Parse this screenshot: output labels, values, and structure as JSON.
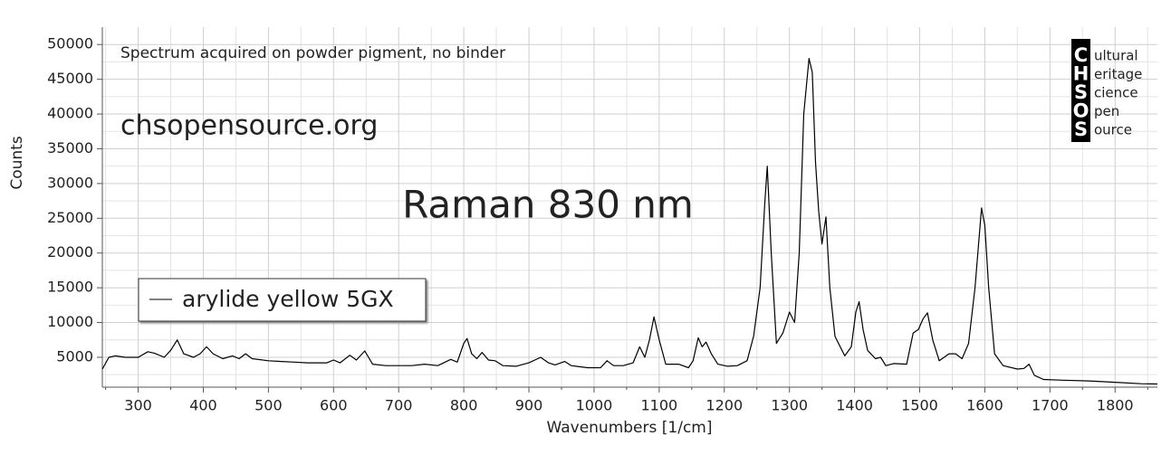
{
  "chart_data": {
    "type": "line",
    "title": "Raman 830 nm",
    "xlabel": "Wavenumbers [1/cm]",
    "ylabel": "Counts",
    "annotations": [
      "Spectrum acquired on powder pigment, no binder",
      "chsopensource.org"
    ],
    "logo": {
      "letters": [
        "C",
        "H",
        "S",
        "O",
        "S"
      ],
      "words": [
        "ultural",
        "eritage",
        "cience",
        "pen",
        "ource"
      ]
    },
    "legend": "upper left",
    "grid": true,
    "xlim": [
      245,
      1865
    ],
    "ylim": [
      700,
      52500
    ],
    "xticks": [
      300,
      400,
      500,
      600,
      700,
      800,
      900,
      1000,
      1100,
      1200,
      1300,
      1400,
      1500,
      1600,
      1700,
      1800
    ],
    "yticks": [
      5000,
      10000,
      15000,
      20000,
      25000,
      30000,
      35000,
      40000,
      45000,
      50000
    ],
    "xminorticks": [
      250,
      350,
      450,
      550,
      650,
      750,
      850,
      950,
      1050,
      1150,
      1250,
      1350,
      1450,
      1550,
      1650,
      1750,
      1850
    ],
    "yminorticks": [
      2500,
      7500,
      12500,
      17500,
      22500,
      27500,
      32500,
      37500,
      42500,
      47500,
      52500
    ],
    "x": [
      245,
      255,
      265,
      280,
      300,
      315,
      325,
      340,
      350,
      360,
      370,
      385,
      395,
      405,
      415,
      430,
      445,
      455,
      465,
      475,
      500,
      520,
      540,
      560,
      590,
      600,
      610,
      625,
      635,
      648,
      660,
      680,
      720,
      740,
      760,
      780,
      790,
      800,
      805,
      812,
      820,
      828,
      838,
      848,
      860,
      880,
      900,
      918,
      930,
      940,
      955,
      965,
      990,
      1010,
      1020,
      1030,
      1045,
      1060,
      1070,
      1078,
      1085,
      1092,
      1100,
      1110,
      1130,
      1145,
      1152,
      1160,
      1166,
      1172,
      1180,
      1190,
      1205,
      1220,
      1235,
      1245,
      1255,
      1262,
      1266,
      1272,
      1280,
      1290,
      1300,
      1308,
      1315,
      1322,
      1330,
      1335,
      1340,
      1345,
      1350,
      1356,
      1362,
      1370,
      1385,
      1395,
      1402,
      1407,
      1413,
      1420,
      1432,
      1440,
      1448,
      1460,
      1480,
      1490,
      1498,
      1505,
      1512,
      1520,
      1530,
      1545,
      1555,
      1565,
      1575,
      1585,
      1595,
      1600,
      1606,
      1615,
      1628,
      1650,
      1660,
      1668,
      1676,
      1690,
      1720,
      1760,
      1800,
      1840,
      1865
    ],
    "series": [
      {
        "name": "arylide yellow 5GX",
        "color": "#000000",
        "values": [
          3300,
          5000,
          5200,
          5000,
          5000,
          5800,
          5600,
          5000,
          6000,
          7500,
          5500,
          5000,
          5500,
          6500,
          5500,
          4800,
          5200,
          4800,
          5500,
          4800,
          4500,
          4400,
          4300,
          4200,
          4200,
          4600,
          4200,
          5300,
          4600,
          5900,
          4000,
          3800,
          3800,
          4000,
          3800,
          4700,
          4300,
          7000,
          7700,
          5500,
          4800,
          5700,
          4600,
          4500,
          3800,
          3700,
          4200,
          5000,
          4200,
          3900,
          4400,
          3800,
          3500,
          3500,
          4500,
          3800,
          3800,
          4200,
          6500,
          5000,
          7500,
          10800,
          7500,
          4000,
          4000,
          3500,
          4500,
          7800,
          6500,
          7200,
          5500,
          4000,
          3700,
          3800,
          4500,
          8000,
          15000,
          27000,
          32500,
          20000,
          7000,
          8500,
          11500,
          10000,
          20000,
          40000,
          48000,
          46000,
          33000,
          26000,
          21300,
          25200,
          15000,
          8000,
          5200,
          6500,
          11500,
          13000,
          9000,
          6000,
          4800,
          5000,
          3800,
          4100,
          4000,
          8500,
          9000,
          10500,
          11400,
          7500,
          4500,
          5500,
          5500,
          4800,
          7000,
          15000,
          26500,
          24000,
          15000,
          5500,
          3800,
          3300,
          3400,
          4000,
          2400,
          1800,
          1700,
          1600,
          1400,
          1200,
          1150
        ]
      }
    ]
  }
}
